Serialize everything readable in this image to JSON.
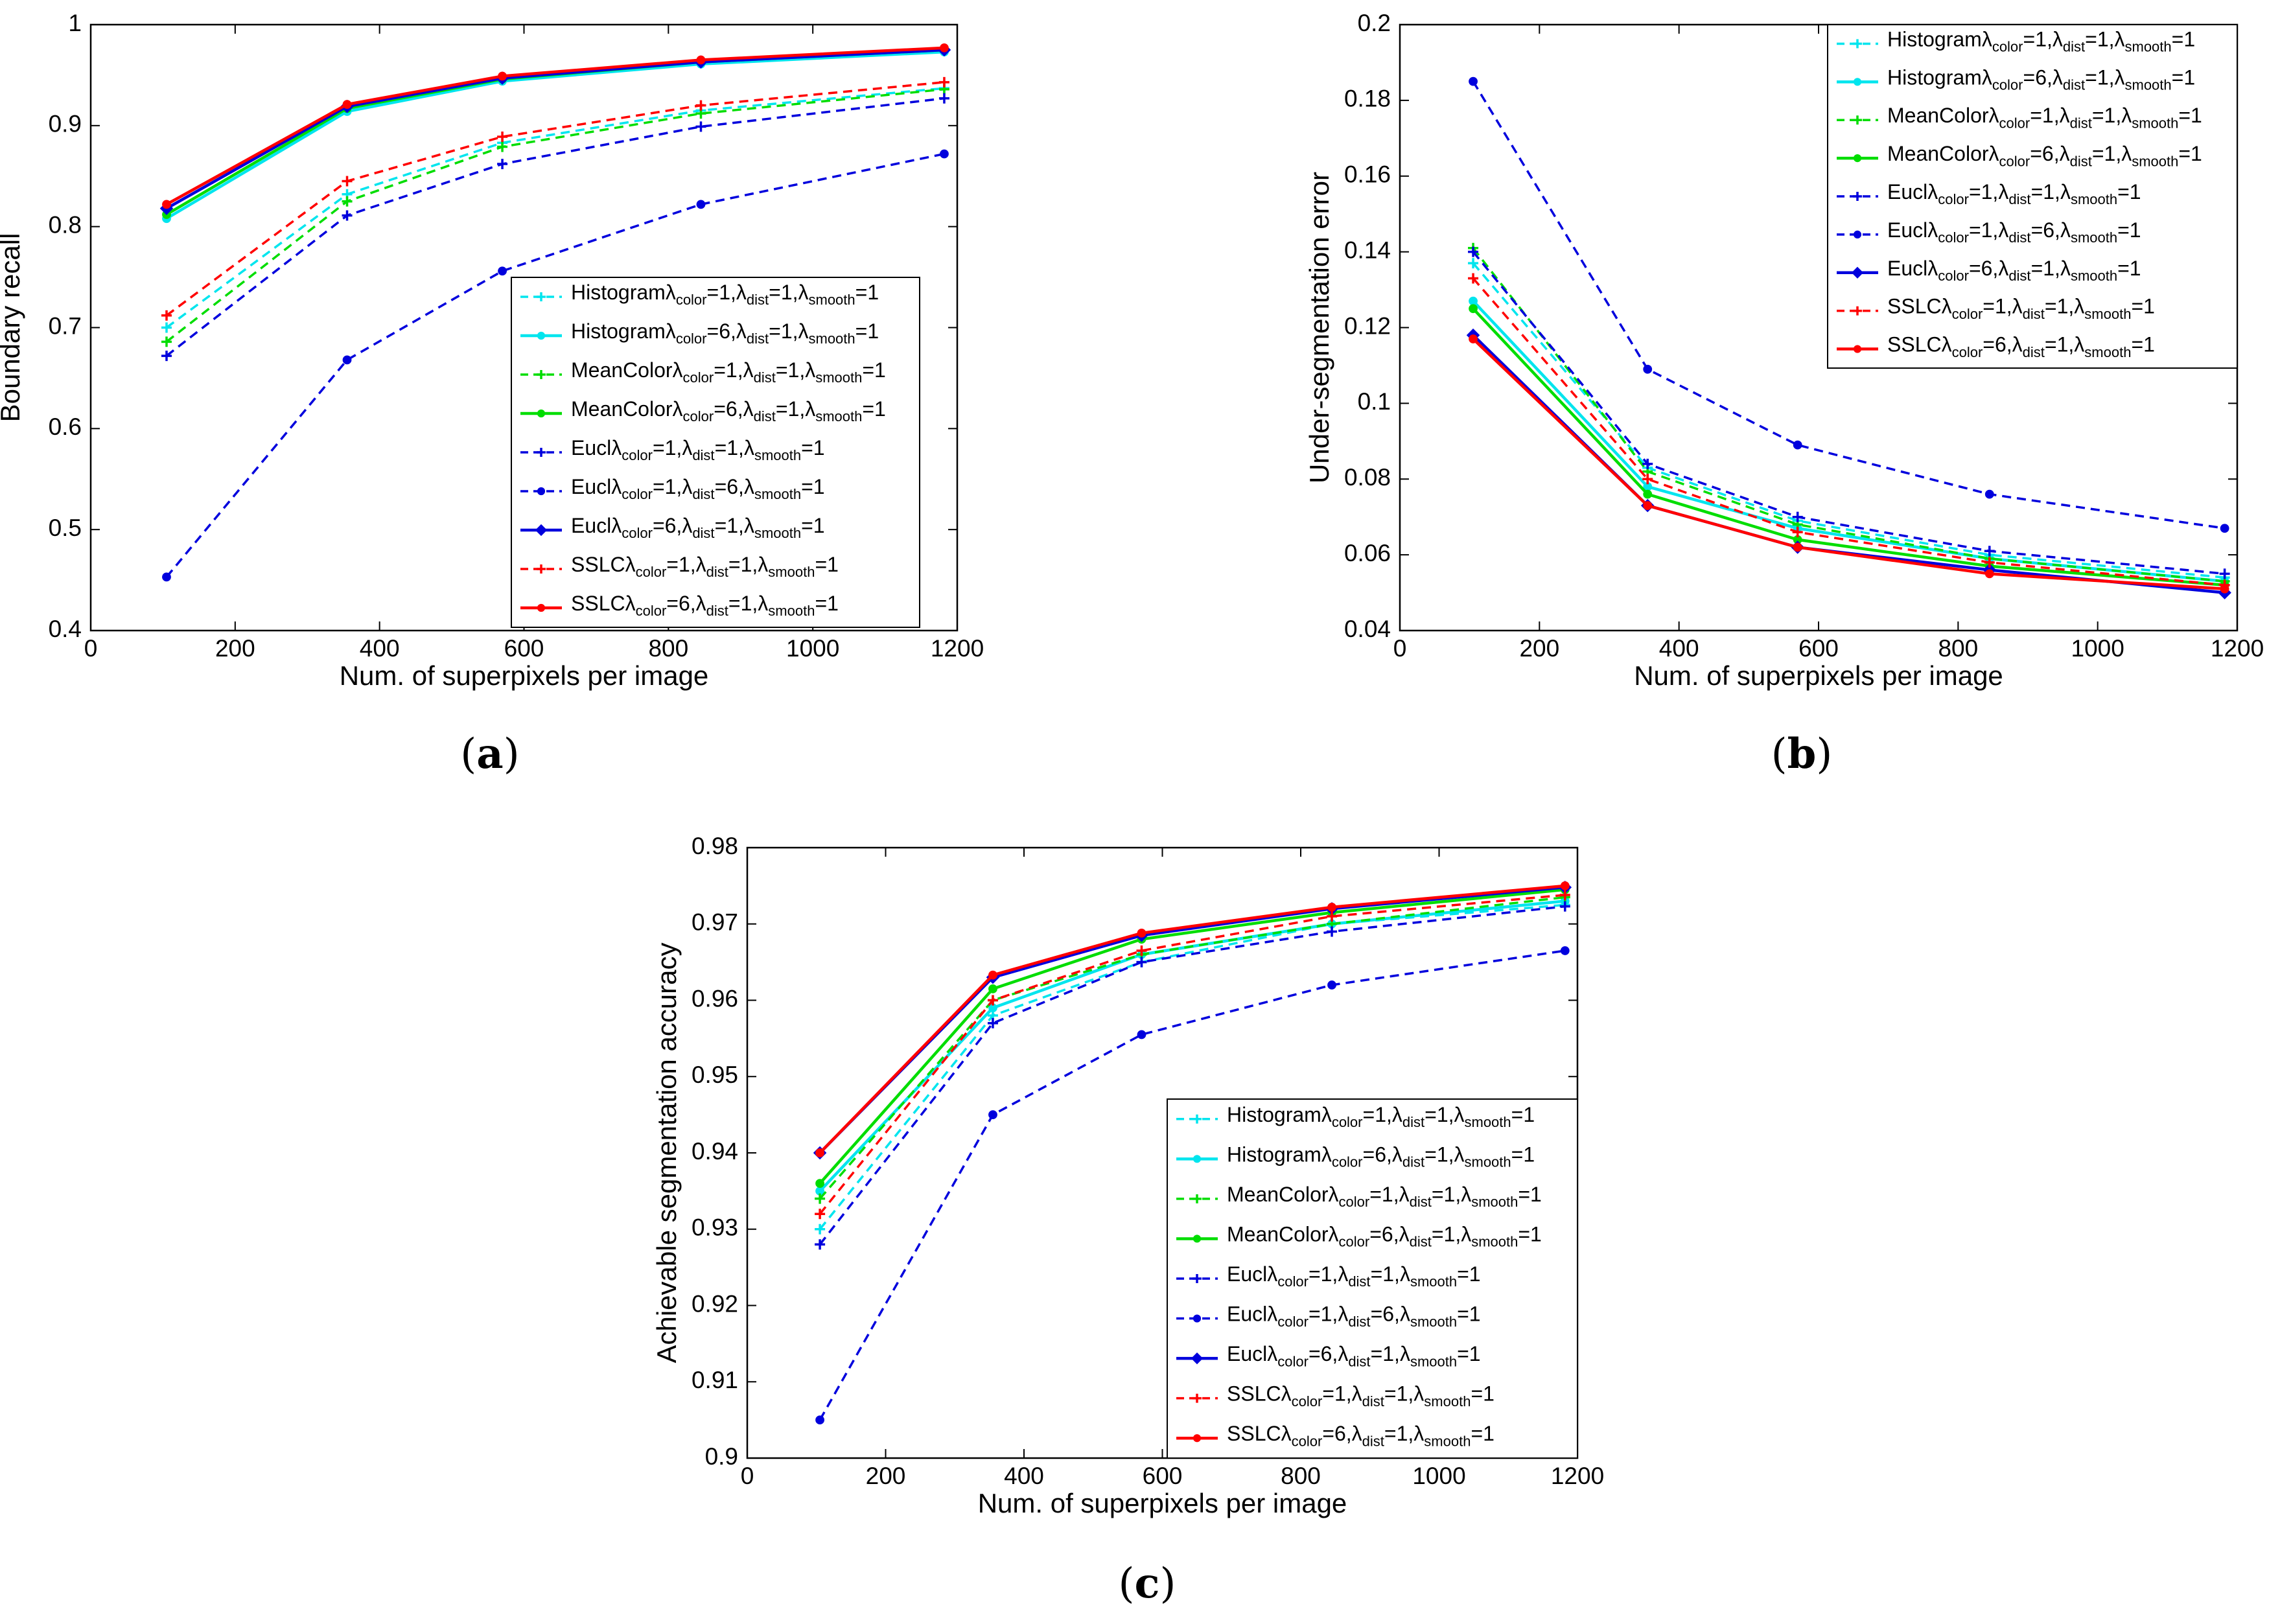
{
  "colors": {
    "cyan": "#00e5ee",
    "green": "#00dd00",
    "blue": "#0000dd",
    "red": "#ff0000",
    "axis": "#000000",
    "background": "#ffffff"
  },
  "chart_data": [
    {
      "type": "line",
      "panel_label": "(a)",
      "panel_letter": "a",
      "xlabel": "Num. of superpixels per image",
      "ylabel": "Boundary recall",
      "xlim": [
        0,
        1200
      ],
      "ylim": [
        0.4,
        1
      ],
      "xticks": [
        0,
        200,
        400,
        600,
        800,
        1000,
        1200
      ],
      "xtick_labels": [
        "0",
        "200",
        "400",
        "600",
        "800",
        "1000",
        "1200"
      ],
      "yticks": [
        0.4,
        0.5,
        0.6,
        0.7,
        0.8,
        0.9,
        1
      ],
      "ytick_labels": [
        "0.4",
        "0.5",
        "0.6",
        "0.7",
        "0.8",
        "0.9",
        "1"
      ],
      "grid": false,
      "legend_position": "bottom-right",
      "x": [
        105,
        355,
        570,
        845,
        1182
      ],
      "series": [
        {
          "base": "Histogram",
          "lc": "1",
          "ld": "1",
          "ls": "1",
          "color": "#00e5ee",
          "dash": true,
          "marker": "plus",
          "values": [
            0.7,
            0.832,
            0.883,
            0.915,
            0.937
          ]
        },
        {
          "base": "Histogram",
          "lc": "6",
          "ld": "1",
          "ls": "1",
          "color": "#00e5ee",
          "dash": false,
          "marker": "dot",
          "values": [
            0.808,
            0.914,
            0.944,
            0.961,
            0.973
          ]
        },
        {
          "base": "MeanColor",
          "lc": "1",
          "ld": "1",
          "ls": "1",
          "color": "#00dd00",
          "dash": true,
          "marker": "plus",
          "values": [
            0.686,
            0.825,
            0.879,
            0.912,
            0.936
          ]
        },
        {
          "base": "MeanColor",
          "lc": "6",
          "ld": "1",
          "ls": "1",
          "color": "#00dd00",
          "dash": false,
          "marker": "dot",
          "values": [
            0.812,
            0.917,
            0.946,
            0.963,
            0.975
          ]
        },
        {
          "base": "Eucl",
          "lc": "1",
          "ld": "1",
          "ls": "1",
          "color": "#0000dd",
          "dash": true,
          "marker": "plus",
          "values": [
            0.672,
            0.811,
            0.862,
            0.899,
            0.927
          ]
        },
        {
          "base": "Eucl",
          "lc": "1",
          "ld": "6",
          "ls": "1",
          "color": "#0000dd",
          "dash": true,
          "marker": "dot",
          "values": [
            0.453,
            0.668,
            0.756,
            0.822,
            0.872
          ]
        },
        {
          "base": "Eucl",
          "lc": "6",
          "ld": "1",
          "ls": "1",
          "color": "#0000dd",
          "dash": false,
          "marker": "diamond",
          "values": [
            0.818,
            0.919,
            0.947,
            0.963,
            0.975
          ]
        },
        {
          "base": "SSLC",
          "lc": "1",
          "ld": "1",
          "ls": "1",
          "color": "#ff0000",
          "dash": true,
          "marker": "plus",
          "values": [
            0.712,
            0.845,
            0.889,
            0.92,
            0.943
          ]
        },
        {
          "base": "SSLC",
          "lc": "6",
          "ld": "1",
          "ls": "1",
          "color": "#ff0000",
          "dash": false,
          "marker": "dot",
          "values": [
            0.822,
            0.921,
            0.949,
            0.965,
            0.977
          ]
        }
      ]
    },
    {
      "type": "line",
      "panel_label": "(b)",
      "panel_letter": "b",
      "xlabel": "Num. of superpixels per image",
      "ylabel": "Under-segmentation error",
      "xlim": [
        0,
        1200
      ],
      "ylim": [
        0.04,
        0.2
      ],
      "xticks": [
        0,
        200,
        400,
        600,
        800,
        1000,
        1200
      ],
      "xtick_labels": [
        "0",
        "200",
        "400",
        "600",
        "800",
        "1000",
        "1200"
      ],
      "yticks": [
        0.04,
        0.06,
        0.08,
        0.1,
        0.12,
        0.14,
        0.16,
        0.18,
        0.2
      ],
      "ytick_labels": [
        "0.04",
        "0.06",
        "0.08",
        "0.1",
        "0.12",
        "0.14",
        "0.16",
        "0.18",
        "0.2"
      ],
      "grid": false,
      "legend_position": "top-right",
      "x": [
        105,
        355,
        570,
        845,
        1182
      ],
      "series": [
        {
          "base": "Histogram",
          "lc": "1",
          "ld": "1",
          "ls": "1",
          "color": "#00e5ee",
          "dash": true,
          "marker": "plus",
          "values": [
            0.137,
            0.083,
            0.069,
            0.06,
            0.054
          ]
        },
        {
          "base": "Histogram",
          "lc": "6",
          "ld": "1",
          "ls": "1",
          "color": "#00e5ee",
          "dash": false,
          "marker": "dot",
          "values": [
            0.127,
            0.078,
            0.067,
            0.059,
            0.053
          ]
        },
        {
          "base": "MeanColor",
          "lc": "1",
          "ld": "1",
          "ls": "1",
          "color": "#00dd00",
          "dash": true,
          "marker": "plus",
          "values": [
            0.141,
            0.082,
            0.068,
            0.059,
            0.053
          ]
        },
        {
          "base": "MeanColor",
          "lc": "6",
          "ld": "1",
          "ls": "1",
          "color": "#00dd00",
          "dash": false,
          "marker": "dot",
          "values": [
            0.125,
            0.076,
            0.064,
            0.057,
            0.052
          ]
        },
        {
          "base": "Eucl",
          "lc": "1",
          "ld": "1",
          "ls": "1",
          "color": "#0000dd",
          "dash": true,
          "marker": "plus",
          "values": [
            0.14,
            0.084,
            0.07,
            0.061,
            0.055
          ]
        },
        {
          "base": "Eucl",
          "lc": "1",
          "ld": "6",
          "ls": "1",
          "color": "#0000dd",
          "dash": true,
          "marker": "dot",
          "values": [
            0.185,
            0.109,
            0.089,
            0.076,
            0.067
          ]
        },
        {
          "base": "Eucl",
          "lc": "6",
          "ld": "1",
          "ls": "1",
          "color": "#0000dd",
          "dash": false,
          "marker": "diamond",
          "values": [
            0.118,
            0.073,
            0.062,
            0.056,
            0.05
          ]
        },
        {
          "base": "SSLC",
          "lc": "1",
          "ld": "1",
          "ls": "1",
          "color": "#ff0000",
          "dash": true,
          "marker": "plus",
          "values": [
            0.133,
            0.08,
            0.066,
            0.058,
            0.052
          ]
        },
        {
          "base": "SSLC",
          "lc": "6",
          "ld": "1",
          "ls": "1",
          "color": "#ff0000",
          "dash": false,
          "marker": "dot",
          "values": [
            0.117,
            0.073,
            0.062,
            0.055,
            0.051
          ]
        }
      ]
    },
    {
      "type": "line",
      "panel_label": "(c)",
      "panel_letter": "c",
      "xlabel": "Num. of superpixels per image",
      "ylabel": "Achievable segmentation accuracy",
      "xlim": [
        0,
        1200
      ],
      "ylim": [
        0.9,
        0.98
      ],
      "xticks": [
        0,
        200,
        400,
        600,
        800,
        1000,
        1200
      ],
      "xtick_labels": [
        "0",
        "200",
        "400",
        "600",
        "800",
        "1000",
        "1200"
      ],
      "yticks": [
        0.9,
        0.91,
        0.92,
        0.93,
        0.94,
        0.95,
        0.96,
        0.97,
        0.98
      ],
      "ytick_labels": [
        "0.9",
        "0.91",
        "0.92",
        "0.93",
        "0.94",
        "0.95",
        "0.96",
        "0.97",
        "0.98"
      ],
      "grid": false,
      "legend_position": "bottom-right",
      "x": [
        105,
        355,
        570,
        845,
        1182
      ],
      "series": [
        {
          "base": "Histogram",
          "lc": "1",
          "ld": "1",
          "ls": "1",
          "color": "#00e5ee",
          "dash": true,
          "marker": "plus",
          "values": [
            0.93,
            0.958,
            0.965,
            0.97,
            0.9725
          ]
        },
        {
          "base": "Histogram",
          "lc": "6",
          "ld": "1",
          "ls": "1",
          "color": "#00e5ee",
          "dash": false,
          "marker": "dot",
          "values": [
            0.935,
            0.959,
            0.966,
            0.97,
            0.973
          ]
        },
        {
          "base": "MeanColor",
          "lc": "1",
          "ld": "1",
          "ls": "1",
          "color": "#00dd00",
          "dash": true,
          "marker": "plus",
          "values": [
            0.934,
            0.96,
            0.966,
            0.97,
            0.9735
          ]
        },
        {
          "base": "MeanColor",
          "lc": "6",
          "ld": "1",
          "ls": "1",
          "color": "#00dd00",
          "dash": false,
          "marker": "dot",
          "values": [
            0.936,
            0.9615,
            0.968,
            0.9715,
            0.9745
          ]
        },
        {
          "base": "Eucl",
          "lc": "1",
          "ld": "1",
          "ls": "1",
          "color": "#0000dd",
          "dash": true,
          "marker": "plus",
          "values": [
            0.928,
            0.957,
            0.965,
            0.969,
            0.9723
          ]
        },
        {
          "base": "Eucl",
          "lc": "1",
          "ld": "6",
          "ls": "1",
          "color": "#0000dd",
          "dash": true,
          "marker": "dot",
          "values": [
            0.905,
            0.945,
            0.9555,
            0.962,
            0.9665
          ]
        },
        {
          "base": "Eucl",
          "lc": "6",
          "ld": "1",
          "ls": "1",
          "color": "#0000dd",
          "dash": false,
          "marker": "diamond",
          "values": [
            0.94,
            0.963,
            0.9685,
            0.972,
            0.9748
          ]
        },
        {
          "base": "SSLC",
          "lc": "1",
          "ld": "1",
          "ls": "1",
          "color": "#ff0000",
          "dash": true,
          "marker": "plus",
          "values": [
            0.932,
            0.96,
            0.9665,
            0.971,
            0.9738
          ]
        },
        {
          "base": "SSLC",
          "lc": "6",
          "ld": "1",
          "ls": "1",
          "color": "#ff0000",
          "dash": false,
          "marker": "dot",
          "values": [
            0.94,
            0.9633,
            0.9688,
            0.9722,
            0.975
          ]
        }
      ]
    }
  ]
}
